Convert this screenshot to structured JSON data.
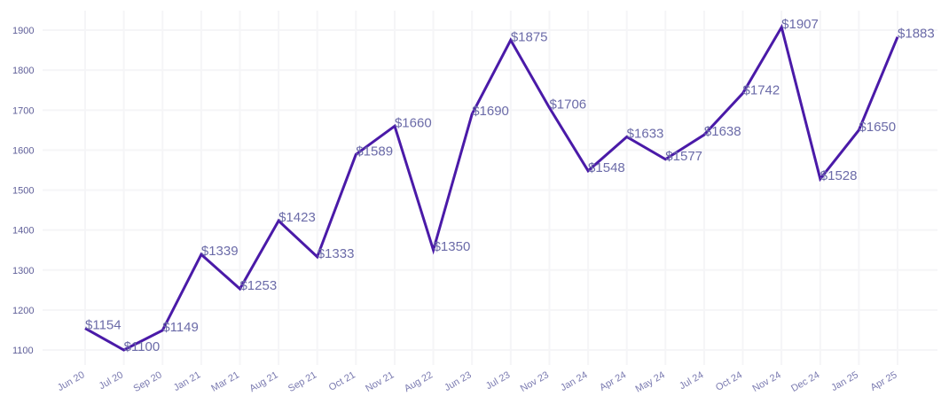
{
  "chart_data": {
    "type": "line",
    "title": "",
    "xlabel": "",
    "ylabel": "",
    "ylim": [
      1080,
      1960
    ],
    "yticks": [
      1100,
      1200,
      1300,
      1400,
      1500,
      1600,
      1700,
      1800,
      1900
    ],
    "grid": true,
    "line_color": "#4a1aa8",
    "categories": [
      "Jun 20",
      "Jul 20",
      "Sep 20",
      "Jan 21",
      "Mar 21",
      "Aug 21",
      "Sep 21",
      "Oct 21",
      "Nov 21",
      "Aug 22",
      "Jun 23",
      "Jul 23",
      "Nov 23",
      "Jan 24",
      "Apr 24",
      "May 24",
      "Jul 24",
      "Oct 24",
      "Nov 24",
      "Dec 24",
      "Jan 25",
      "Apr 25"
    ],
    "values": [
      1154,
      1100,
      1149,
      1339,
      1253,
      1423,
      1333,
      1589,
      1660,
      1350,
      1690,
      1875,
      1706,
      1548,
      1633,
      1577,
      1638,
      1742,
      1907,
      1528,
      1650,
      1883
    ],
    "data_labels": [
      "$1154",
      "$1100",
      "$1149",
      "$1339",
      "$1253",
      "$1423",
      "$1333",
      "$1589",
      "$1660",
      "$1350",
      "$1690",
      "$1875",
      "$1706",
      "$1548",
      "$1633",
      "$1577",
      "$1638",
      "$1742",
      "$1907",
      "$1528",
      "$1650",
      "$1883"
    ]
  }
}
